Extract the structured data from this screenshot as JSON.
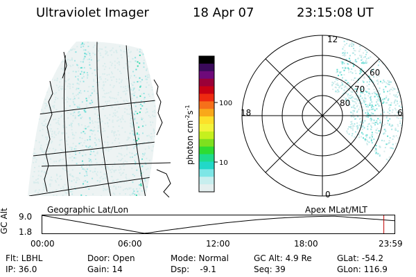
{
  "header": {
    "instrument": "Ultraviolet Imager",
    "date": "18 Apr 07",
    "time": "23:15:08 UT"
  },
  "colorbar": {
    "unit_label": "photon cm",
    "unit_sup1": "-2",
    "unit_s": "s",
    "unit_sup2": "-1",
    "ticks": [
      "100",
      "10"
    ],
    "colors": [
      "#000000",
      "#3a0a5a",
      "#6e0a7a",
      "#9a0038",
      "#c80014",
      "#ee2a10",
      "#f6701a",
      "#f9a81a",
      "#fde02a",
      "#f3f33a",
      "#c6f01e",
      "#7ee01e",
      "#2edc32",
      "#1edc8c",
      "#22d8c8",
      "#7de6e6",
      "#c7eeee",
      "#e4efef"
    ]
  },
  "maps": {
    "geo_caption": "Geographic Lat/Lon",
    "polar_caption": "Apex MLat/MLT",
    "polar_labels": {
      "top": "12",
      "bottom": "0",
      "left": "18",
      "right": "6"
    },
    "polar_rings": [
      "60",
      "70",
      "80"
    ]
  },
  "timeline": {
    "axis_label": "GC Alt",
    "y_ticks": [
      "9.0",
      "1.8"
    ],
    "x_ticks": [
      "00:00",
      "06:00",
      "12:00",
      "18:00",
      "23:59"
    ],
    "marker_hour": 23.25
  },
  "status": {
    "filter": "Flt: LBHL",
    "ip": "IP: 36.0",
    "door": "Door: Open",
    "gain": "Gain: 14",
    "mode": "Mode: Normal",
    "dsp": "Dsp:    -9.1",
    "gc_alt": "GC Alt: 4.9 Re",
    "seq": "Seq: 39",
    "glat": "GLat: -54.2",
    "glon": "GLon: 116.9"
  }
}
